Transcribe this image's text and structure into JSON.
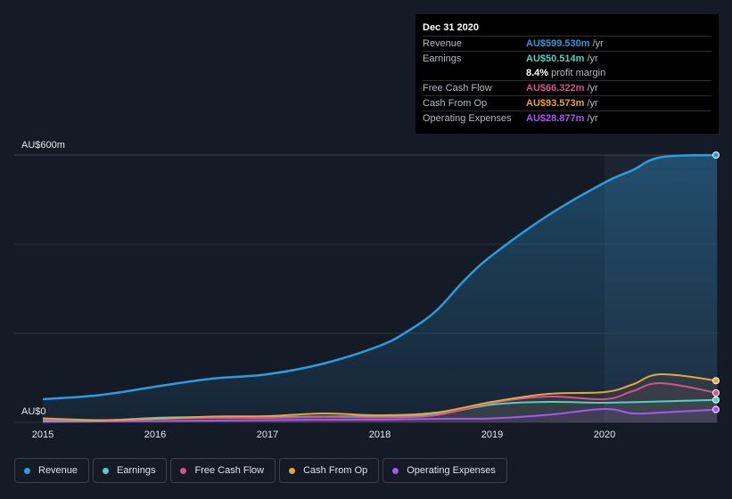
{
  "chart_data": {
    "type": "area",
    "ylabel_top": "AU$600m",
    "ylabel_bottom": "AU$0",
    "ylim": [
      0,
      600
    ],
    "xlim": [
      2015,
      2021
    ],
    "x_ticks": [
      "2015",
      "2016",
      "2017",
      "2018",
      "2019",
      "2020"
    ],
    "grid": true,
    "legend_placement": "bottom",
    "highlight_start": 2020,
    "series": [
      {
        "name": "Revenue",
        "color": "#2d9cdb",
        "filled": true,
        "points": [
          [
            2015,
            52
          ],
          [
            2015.5,
            61
          ],
          [
            2016,
            80
          ],
          [
            2016.5,
            98
          ],
          [
            2017,
            108
          ],
          [
            2017.5,
            132
          ],
          [
            2018,
            172
          ],
          [
            2018.25,
            205
          ],
          [
            2018.5,
            250
          ],
          [
            2018.75,
            318
          ],
          [
            2019,
            375
          ],
          [
            2019.5,
            465
          ],
          [
            2020,
            538
          ],
          [
            2020.25,
            566
          ],
          [
            2020.5,
            595
          ],
          [
            2021,
            600
          ]
        ]
      },
      {
        "name": "Earnings",
        "color": "#4fd1c5",
        "filled": false,
        "points": [
          [
            2015,
            4
          ],
          [
            2015.5,
            4
          ],
          [
            2016,
            10
          ],
          [
            2016.5,
            12
          ],
          [
            2017,
            12
          ],
          [
            2017.5,
            13
          ],
          [
            2018,
            14
          ],
          [
            2018.5,
            18
          ],
          [
            2019,
            40
          ],
          [
            2019.5,
            46
          ],
          [
            2020,
            44
          ],
          [
            2020.5,
            47
          ],
          [
            2021,
            50.5
          ]
        ]
      },
      {
        "name": "Free Cash Flow",
        "color": "#d6528a",
        "filled": false,
        "points": [
          [
            2015,
            6
          ],
          [
            2015.5,
            5
          ],
          [
            2016,
            8
          ],
          [
            2016.5,
            10
          ],
          [
            2017,
            10
          ],
          [
            2017.5,
            12
          ],
          [
            2018,
            11
          ],
          [
            2018.5,
            16
          ],
          [
            2019,
            44
          ],
          [
            2019.5,
            58
          ],
          [
            2020,
            52
          ],
          [
            2020.25,
            70
          ],
          [
            2020.5,
            88
          ],
          [
            2021,
            66.3
          ]
        ]
      },
      {
        "name": "Cash From Op",
        "color": "#e8a33d",
        "filled": false,
        "points": [
          [
            2015,
            9
          ],
          [
            2015.5,
            5
          ],
          [
            2016,
            8
          ],
          [
            2016.5,
            13
          ],
          [
            2017,
            14
          ],
          [
            2017.5,
            20
          ],
          [
            2018,
            16
          ],
          [
            2018.5,
            22
          ],
          [
            2019,
            46
          ],
          [
            2019.5,
            64
          ],
          [
            2020,
            68
          ],
          [
            2020.25,
            85
          ],
          [
            2020.5,
            108
          ],
          [
            2021,
            93.6
          ]
        ]
      },
      {
        "name": "Operating Expenses",
        "color": "#a855f7",
        "filled": false,
        "points": [
          [
            2015,
            1
          ],
          [
            2015.5,
            2
          ],
          [
            2016,
            3
          ],
          [
            2016.5,
            4
          ],
          [
            2017,
            5
          ],
          [
            2017.5,
            6
          ],
          [
            2018,
            6
          ],
          [
            2018.5,
            8
          ],
          [
            2019,
            9
          ],
          [
            2019.5,
            17
          ],
          [
            2020,
            30
          ],
          [
            2020.25,
            20
          ],
          [
            2020.5,
            22
          ],
          [
            2021,
            28.9
          ]
        ]
      }
    ]
  },
  "tooltip": {
    "date": "Dec 31 2020",
    "rows": [
      {
        "label": "Revenue",
        "value": "AU$599.530m",
        "unit": "/yr",
        "color": "#2d9cdb"
      },
      {
        "label": "Earnings",
        "value": "AU$50.514m",
        "unit": "/yr",
        "color": "#4fd1c5"
      },
      {
        "label": "",
        "value": "8.4%",
        "unit": "profit margin",
        "color": "#ffffff",
        "sub": true
      },
      {
        "label": "Free Cash Flow",
        "value": "AU$66.322m",
        "unit": "/yr",
        "color": "#d6528a"
      },
      {
        "label": "Cash From Op",
        "value": "AU$93.573m",
        "unit": "/yr",
        "color": "#e8a33d"
      },
      {
        "label": "Operating Expenses",
        "value": "AU$28.877m",
        "unit": "/yr",
        "color": "#a855f7"
      }
    ]
  },
  "legend": [
    {
      "label": "Revenue",
      "color": "#2d9cdb"
    },
    {
      "label": "Earnings",
      "color": "#4fd1c5"
    },
    {
      "label": "Free Cash Flow",
      "color": "#d6528a"
    },
    {
      "label": "Cash From Op",
      "color": "#e8a33d"
    },
    {
      "label": "Operating Expenses",
      "color": "#a855f7"
    }
  ]
}
